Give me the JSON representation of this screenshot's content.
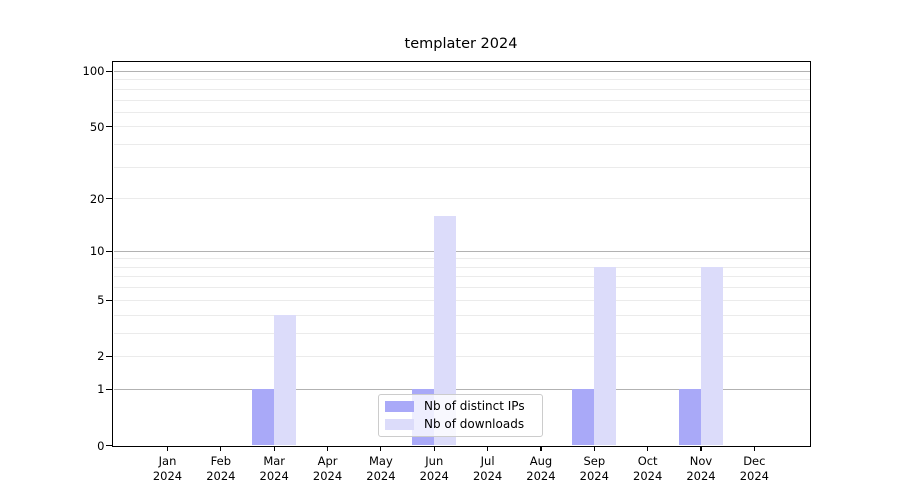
{
  "title": "templater 2024",
  "chart_data": {
    "type": "bar",
    "title": "templater 2024",
    "categories": [
      "Jan",
      "Feb",
      "Mar",
      "Apr",
      "May",
      "Jun",
      "Jul",
      "Aug",
      "Sep",
      "Oct",
      "Nov",
      "Dec"
    ],
    "year_label": "2024",
    "series": [
      {
        "name": "Nb of distinct IPs",
        "color": "#a9a9f8",
        "values": [
          0,
          0,
          1,
          0,
          0,
          1,
          0,
          0,
          1,
          0,
          1,
          0
        ]
      },
      {
        "name": "Nb of downloads",
        "color": "#dcdcfa",
        "values": [
          0,
          0,
          4,
          0,
          0,
          16,
          0,
          0,
          8,
          0,
          8,
          0
        ]
      }
    ],
    "xlabel": "",
    "ylabel": "",
    "yscale": "log10(1+x)",
    "ylim": [
      0,
      112.5
    ],
    "y_tick_values": [
      0,
      1,
      2,
      5,
      10,
      20,
      50,
      100
    ],
    "grid": true,
    "grid_major_values": [
      1,
      10,
      100
    ],
    "grid_minor_values": [
      2,
      3,
      4,
      5,
      6,
      7,
      8,
      9,
      20,
      30,
      40,
      50,
      60,
      70,
      80,
      90
    ],
    "legend_position": "lower-center-inside"
  },
  "colors": {
    "background": "#ffffff",
    "grid_major": "#b2b2b2",
    "grid_minor": "#ebebeb",
    "spine": "#000000",
    "bar_distinct_ips": "#a9a9f8",
    "bar_downloads": "#dcdcfa",
    "legend_border": "#cccccc"
  }
}
